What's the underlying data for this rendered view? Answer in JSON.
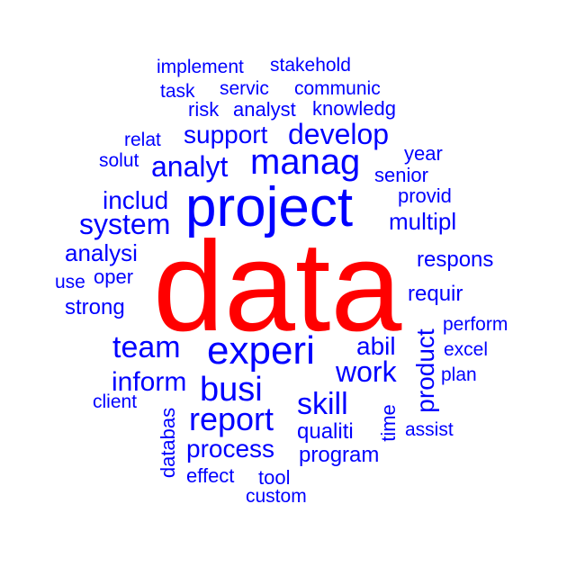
{
  "colors": {
    "primary": "#ff0000",
    "secondary": "#0000ff",
    "background": "#ffffff"
  },
  "words": {
    "data": "data",
    "project": "project",
    "experi": "experi",
    "manag": "manag",
    "busi": "busi",
    "report": "report",
    "system": "system",
    "team": "team",
    "analyt": "analyt",
    "develop": "develop",
    "skill": "skill",
    "work": "work",
    "inform": "inform",
    "support": "support",
    "process": "process",
    "product": "product",
    "includ": "includ",
    "analysi": "analysi",
    "abil": "abil",
    "multipl": "multipl",
    "respons": "respons",
    "requir": "requir",
    "qualiti": "qualiti",
    "program": "program",
    "tool": "tool",
    "provid": "provid",
    "senior": "senior",
    "year": "year",
    "strong": "strong",
    "oper": "oper",
    "perform": "perform",
    "excel": "excel",
    "plan": "plan",
    "assist": "assist",
    "time": "time",
    "databas": "databas",
    "effect": "effect",
    "custom": "custom",
    "client": "client",
    "use": "use",
    "solut": "solut",
    "relat": "relat",
    "risk": "risk",
    "analyst": "analyst",
    "knowledg": "knowledg",
    "task": "task",
    "servic": "servic",
    "communic": "communic",
    "implement": "implement",
    "stakehold": "stakehold"
  }
}
